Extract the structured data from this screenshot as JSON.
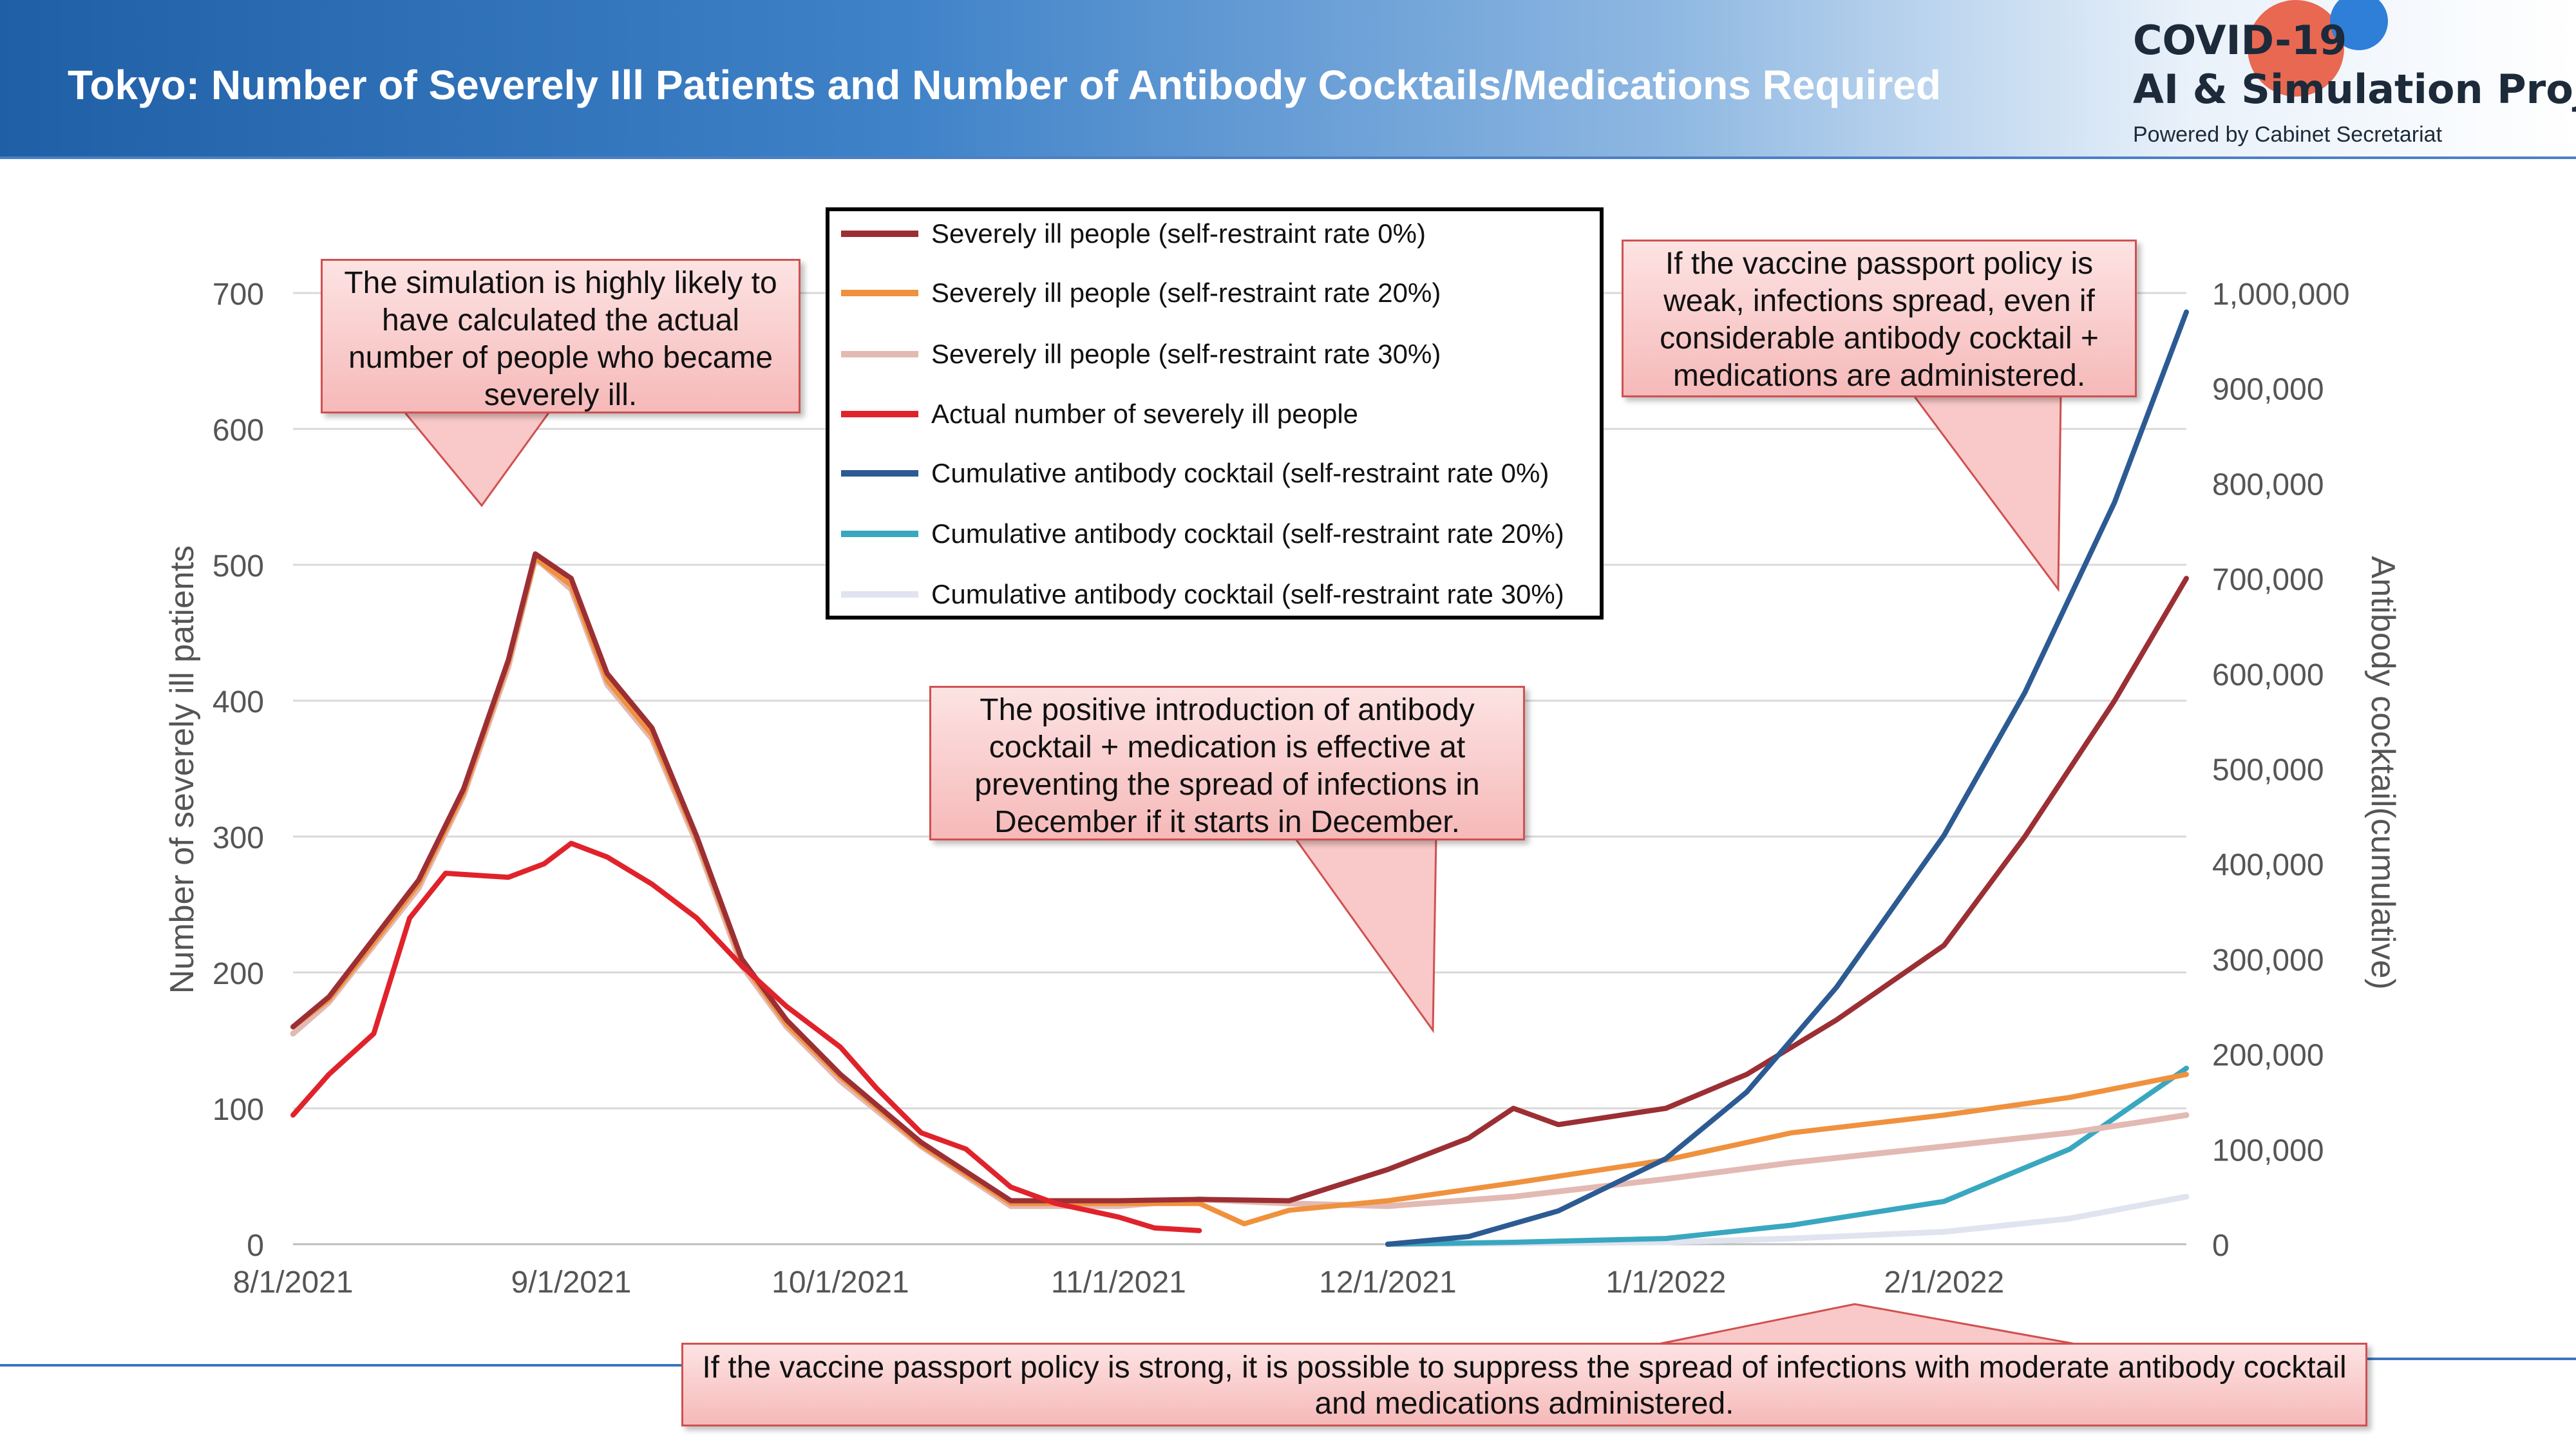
{
  "header": {
    "title": "Tokyo: Number of Severely Ill Patients and Number of Antibody Cocktails/Medications Required",
    "logo_line1": "COVID-19",
    "logo_line2": "AI & Simulation Project",
    "logo_line3": "Powered by Cabinet Secretariat"
  },
  "callouts": {
    "simulation": "The simulation is highly likely to have calculated the actual number of people who became severely ill.",
    "passport_weak": "If the vaccine passport policy is weak, infections spread, even if considerable antibody cocktail + medications are administered.",
    "positive": "The positive introduction of antibody cocktail + medication is effective at preventing the spread of infections in December if it starts in December.",
    "passport_strong": "If the vaccine passport policy is strong, it is possible to suppress the spread of infections with moderate antibody cocktail and medications administered."
  },
  "chart_data": {
    "type": "line",
    "ylabel": "Number of severely ill patients",
    "y2label": "Antibody cocktail(cumulative)",
    "x_ticks": [
      "8/1/2021",
      "9/1/2021",
      "10/1/2021",
      "11/1/2021",
      "12/1/2021",
      "1/1/2022",
      "2/1/2022"
    ],
    "x_range": [
      "2021-08-01",
      "2022-02-28"
    ],
    "ylim": [
      0,
      700
    ],
    "y_ticks": [
      "0",
      "100",
      "200",
      "300",
      "400",
      "500",
      "600",
      "700"
    ],
    "y2lim": [
      0,
      1000000
    ],
    "y2_ticks": [
      "0",
      "100,000",
      "200,000",
      "300,000",
      "400,000",
      "500,000",
      "600,000",
      "700,000",
      "800,000",
      "900,000",
      "1,000,000"
    ],
    "grid": "horizontal",
    "legend_position": "top-center",
    "series": [
      {
        "name": "Severely ill people (self-restraint rate 0%)",
        "axis": "left",
        "color": "#9b2f34",
        "x": [
          "2021-08-01",
          "2021-08-05",
          "2021-08-10",
          "2021-08-15",
          "2021-08-20",
          "2021-08-25",
          "2021-08-28",
          "2021-09-01",
          "2021-09-05",
          "2021-09-10",
          "2021-09-15",
          "2021-09-20",
          "2021-09-25",
          "2021-10-01",
          "2021-10-10",
          "2021-10-20",
          "2021-11-01",
          "2021-11-10",
          "2021-11-20",
          "2021-12-01",
          "2021-12-10",
          "2021-12-15",
          "2021-12-20",
          "2022-01-01",
          "2022-01-10",
          "2022-01-20",
          "2022-02-01",
          "2022-02-10",
          "2022-02-20",
          "2022-02-28"
        ],
        "y": [
          160,
          182,
          225,
          268,
          335,
          430,
          508,
          490,
          420,
          380,
          300,
          210,
          165,
          125,
          75,
          32,
          32,
          33,
          32,
          55,
          78,
          100,
          88,
          100,
          125,
          165,
          220,
          300,
          400,
          490
        ]
      },
      {
        "name": "Severely ill people (self-restraint rate 20%)",
        "axis": "left",
        "color": "#f0913e",
        "x": [
          "2021-08-01",
          "2021-08-05",
          "2021-08-10",
          "2021-08-15",
          "2021-08-20",
          "2021-08-25",
          "2021-08-28",
          "2021-09-01",
          "2021-09-05",
          "2021-09-10",
          "2021-09-15",
          "2021-09-20",
          "2021-09-25",
          "2021-10-01",
          "2021-10-10",
          "2021-10-20",
          "2021-11-01",
          "2021-11-10",
          "2021-11-15",
          "2021-11-20",
          "2021-12-01",
          "2021-12-15",
          "2022-01-01",
          "2022-01-15",
          "2022-02-01",
          "2022-02-15",
          "2022-02-28"
        ],
        "y": [
          160,
          180,
          222,
          265,
          332,
          428,
          505,
          485,
          415,
          375,
          298,
          208,
          162,
          123,
          73,
          30,
          30,
          30,
          15,
          25,
          32,
          45,
          62,
          82,
          95,
          108,
          125
        ]
      },
      {
        "name": "Severely ill people (self-restraint rate 30%)",
        "axis": "left",
        "color": "#e3b9b3",
        "x": [
          "2021-08-01",
          "2021-08-05",
          "2021-08-10",
          "2021-08-15",
          "2021-08-20",
          "2021-08-25",
          "2021-08-28",
          "2021-09-01",
          "2021-09-05",
          "2021-09-10",
          "2021-09-15",
          "2021-09-20",
          "2021-09-25",
          "2021-10-01",
          "2021-10-10",
          "2021-10-20",
          "2021-11-01",
          "2021-11-10",
          "2021-11-20",
          "2021-12-01",
          "2021-12-15",
          "2022-01-01",
          "2022-01-15",
          "2022-02-01",
          "2022-02-15",
          "2022-02-28"
        ],
        "y": [
          155,
          178,
          220,
          262,
          330,
          425,
          505,
          482,
          412,
          372,
          295,
          205,
          160,
          120,
          72,
          28,
          28,
          33,
          30,
          28,
          35,
          48,
          60,
          72,
          82,
          95
        ]
      },
      {
        "name": "Actual number of severely ill people",
        "axis": "left",
        "color": "#e0232b",
        "x": [
          "2021-08-01",
          "2021-08-05",
          "2021-08-10",
          "2021-08-14",
          "2021-08-18",
          "2021-08-25",
          "2021-08-29",
          "2021-09-01",
          "2021-09-05",
          "2021-09-10",
          "2021-09-15",
          "2021-09-20",
          "2021-09-25",
          "2021-10-01",
          "2021-10-05",
          "2021-10-10",
          "2021-10-15",
          "2021-10-20",
          "2021-10-25",
          "2021-11-01",
          "2021-11-05",
          "2021-11-10"
        ],
        "y": [
          95,
          125,
          155,
          240,
          273,
          270,
          280,
          295,
          285,
          265,
          240,
          205,
          175,
          145,
          115,
          82,
          70,
          42,
          30,
          20,
          12,
          10
        ]
      },
      {
        "name": "Cumulative antibody cocktail (self-restraint rate 0%)",
        "axis": "right",
        "color": "#2c5a93",
        "x": [
          "2021-12-01",
          "2021-12-10",
          "2021-12-20",
          "2022-01-01",
          "2022-01-10",
          "2022-01-20",
          "2022-02-01",
          "2022-02-10",
          "2022-02-20",
          "2022-02-28"
        ],
        "y": [
          0,
          8000,
          35000,
          90000,
          160000,
          270000,
          430000,
          580000,
          780000,
          980000
        ]
      },
      {
        "name": "Cumulative antibody cocktail (self-restraint rate 20%)",
        "axis": "right",
        "color": "#39a7bf",
        "x": [
          "2021-12-01",
          "2021-12-15",
          "2022-01-01",
          "2022-01-15",
          "2022-02-01",
          "2022-02-15",
          "2022-02-28"
        ],
        "y": [
          0,
          2000,
          6000,
          20000,
          45000,
          100000,
          185000
        ]
      },
      {
        "name": "Cumulative antibody cocktail (self-restraint rate 30%)",
        "axis": "right",
        "color": "#dfe4ef",
        "x": [
          "2021-12-01",
          "2022-01-01",
          "2022-01-15",
          "2022-02-01",
          "2022-02-15",
          "2022-02-28"
        ],
        "y": [
          0,
          2000,
          6000,
          13000,
          27000,
          50000
        ]
      }
    ]
  }
}
